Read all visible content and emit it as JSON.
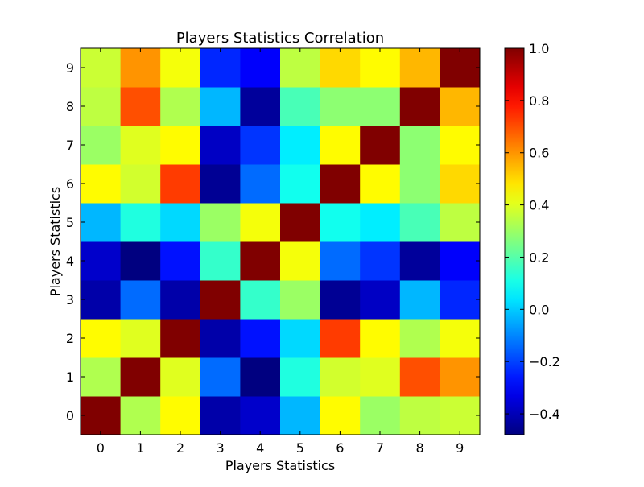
{
  "chart_data": {
    "type": "heatmap",
    "title": "Players Statistics Correlation",
    "xlabel": "Players Statistics",
    "ylabel": "Players Statistics",
    "x_categories": [
      "0",
      "1",
      "2",
      "3",
      "4",
      "5",
      "6",
      "7",
      "8",
      "9"
    ],
    "y_categories": [
      "0",
      "1",
      "2",
      "3",
      "4",
      "5",
      "6",
      "7",
      "8",
      "9"
    ],
    "value_range": [
      -0.48,
      1.0
    ],
    "colormap": "jet",
    "colorbar_ticks": [
      "1.0",
      "0.8",
      "0.6",
      "0.4",
      "0.2",
      "0.0",
      "−0.2",
      "−0.4"
    ],
    "colorbar_tick_values": [
      1.0,
      0.8,
      0.6,
      0.4,
      0.2,
      0.0,
      -0.2,
      -0.4
    ],
    "matrix": [
      [
        1.0,
        0.33,
        0.45,
        -0.42,
        -0.37,
        -0.03,
        0.45,
        0.3,
        0.35,
        0.37
      ],
      [
        0.33,
        1.0,
        0.4,
        -0.14,
        -0.48,
        0.12,
        0.38,
        0.4,
        0.7,
        0.6
      ],
      [
        0.45,
        0.4,
        1.0,
        -0.42,
        -0.27,
        0.02,
        0.73,
        0.45,
        0.33,
        0.43
      ],
      [
        -0.42,
        -0.14,
        -0.42,
        1.0,
        0.15,
        0.3,
        -0.45,
        -0.38,
        -0.03,
        -0.24
      ],
      [
        -0.37,
        -0.48,
        -0.27,
        0.15,
        1.0,
        0.43,
        -0.14,
        -0.22,
        -0.44,
        -0.3
      ],
      [
        -0.03,
        0.12,
        0.02,
        0.3,
        0.43,
        1.0,
        0.1,
        0.05,
        0.18,
        0.35
      ],
      [
        0.45,
        0.38,
        0.73,
        -0.45,
        -0.14,
        0.1,
        1.0,
        0.45,
        0.28,
        0.5
      ],
      [
        0.3,
        0.4,
        0.45,
        -0.38,
        -0.22,
        0.05,
        0.45,
        1.0,
        0.28,
        0.45
      ],
      [
        0.35,
        0.7,
        0.33,
        -0.03,
        -0.44,
        0.18,
        0.28,
        0.28,
        1.0,
        0.55
      ],
      [
        0.37,
        0.6,
        0.43,
        -0.24,
        -0.3,
        0.35,
        0.5,
        0.45,
        0.55,
        1.0
      ]
    ]
  }
}
